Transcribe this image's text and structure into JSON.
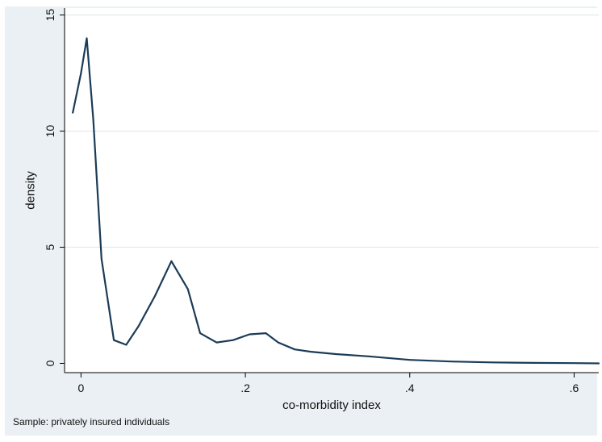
{
  "chart_data": {
    "type": "line",
    "title": "",
    "xlabel": "co-morbidity index",
    "ylabel": "density",
    "note": "Sample: privately insured individuals",
    "xlim": [
      -0.02,
      0.63
    ],
    "ylim": [
      -0.4,
      15.3
    ],
    "xticks": [
      0,
      0.2,
      0.4,
      0.6
    ],
    "xtick_labels": [
      "0",
      ".2",
      ".4",
      ".6"
    ],
    "yticks": [
      0,
      5,
      10,
      15
    ],
    "ytick_labels": [
      "0",
      "5",
      "10",
      "15"
    ],
    "grid": true,
    "legend": "none",
    "series": [
      {
        "x": [
          -0.01,
          0.0,
          0.007,
          0.015,
          0.025,
          0.04,
          0.055,
          0.07,
          0.09,
          0.11,
          0.13,
          0.145,
          0.165,
          0.185,
          0.205,
          0.225,
          0.24,
          0.26,
          0.28,
          0.31,
          0.35,
          0.4,
          0.45,
          0.5,
          0.55,
          0.6,
          0.63
        ],
        "y": [
          10.8,
          12.5,
          14.0,
          10.5,
          4.5,
          1.0,
          0.8,
          1.6,
          2.9,
          4.4,
          3.2,
          1.3,
          0.9,
          1.0,
          1.25,
          1.3,
          0.9,
          0.6,
          0.5,
          0.4,
          0.3,
          0.15,
          0.08,
          0.04,
          0.02,
          0.01,
          0.0
        ]
      }
    ],
    "colors": {
      "background": "#eaf0f3",
      "plot_area": "#ffffff",
      "grid": "#e3e9ed",
      "line": "#1b3b57",
      "axis": "#000000"
    }
  }
}
